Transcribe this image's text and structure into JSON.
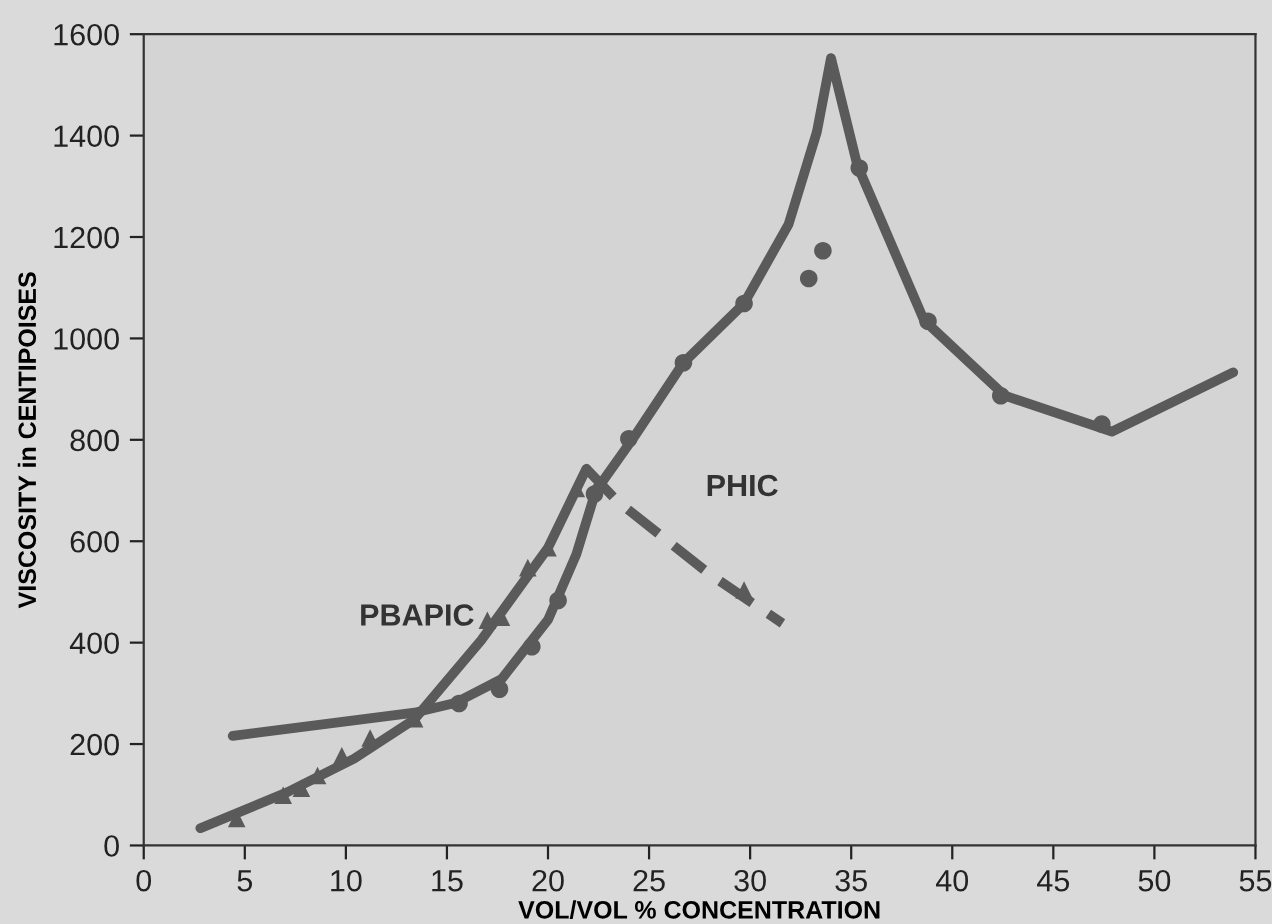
{
  "chart_data": {
    "type": "line",
    "xlabel": "VOL/VOL % CONCENTRATION",
    "ylabel": "VISCOSITY in CENTIPOISES",
    "xlim": [
      0,
      55
    ],
    "ylim": [
      0,
      1600
    ],
    "xticks": [
      0,
      5,
      10,
      15,
      20,
      25,
      30,
      35,
      40,
      45,
      50,
      55
    ],
    "yticks": [
      0,
      200,
      400,
      600,
      800,
      1000,
      1200,
      1400,
      1600
    ],
    "grid": false,
    "legend": false,
    "series": [
      {
        "name": "PHIC",
        "color": "#5a5a5a",
        "line_style": "solid",
        "marker": "none",
        "x": [
          4.4,
          13.4,
          15.4,
          17.7,
          20.0,
          21.4,
          22.4,
          22.7,
          24.3,
          26.7,
          29.7,
          31.9,
          33.3,
          34.0,
          35.3,
          38.6,
          42.6,
          47.9,
          53.9
        ],
        "values": [
          216,
          262,
          281,
          328,
          445,
          574,
          704,
          718,
          808,
          952,
          1069,
          1225,
          1407,
          1553,
          1342,
          1036,
          887,
          816,
          933
        ]
      },
      {
        "type": "scatter",
        "color": "#5a5a5a",
        "marker": "circle",
        "x": [
          15.6,
          17.6,
          19.2,
          20.5,
          22.3,
          24.0,
          26.7,
          29.7,
          32.9,
          33.6,
          35.4,
          38.8,
          42.4,
          47.4
        ],
        "values": [
          280,
          308,
          392,
          483,
          693,
          802,
          952,
          1069,
          1118,
          1173,
          1336,
          1034,
          887,
          831
        ]
      },
      {
        "name": "PBAPIC",
        "color": "#5a5a5a",
        "line_style": "solid",
        "marker": "none",
        "x": [
          2.8,
          7.1,
          10.4,
          13.4,
          16.7,
          20.0,
          21.9
        ],
        "values": [
          34,
          105,
          171,
          249,
          405,
          587,
          743
        ]
      },
      {
        "color": "#5a5a5a",
        "line_style": "dashed",
        "marker": "none",
        "x": [
          21.9,
          23.4,
          28.0,
          31.6
        ],
        "values": [
          743,
          680,
          535,
          438
        ]
      },
      {
        "type": "scatter",
        "color": "#5a5a5a",
        "marker": "triangle",
        "x": [
          4.6,
          6.9,
          7.8,
          8.6,
          9.8,
          11.2,
          13.4,
          17.0,
          17.7,
          19.0,
          20.0,
          21.4,
          29.7
        ],
        "values": [
          53,
          99,
          113,
          138,
          177,
          212,
          250,
          444,
          450,
          548,
          587,
          704,
          504
        ]
      }
    ]
  }
}
